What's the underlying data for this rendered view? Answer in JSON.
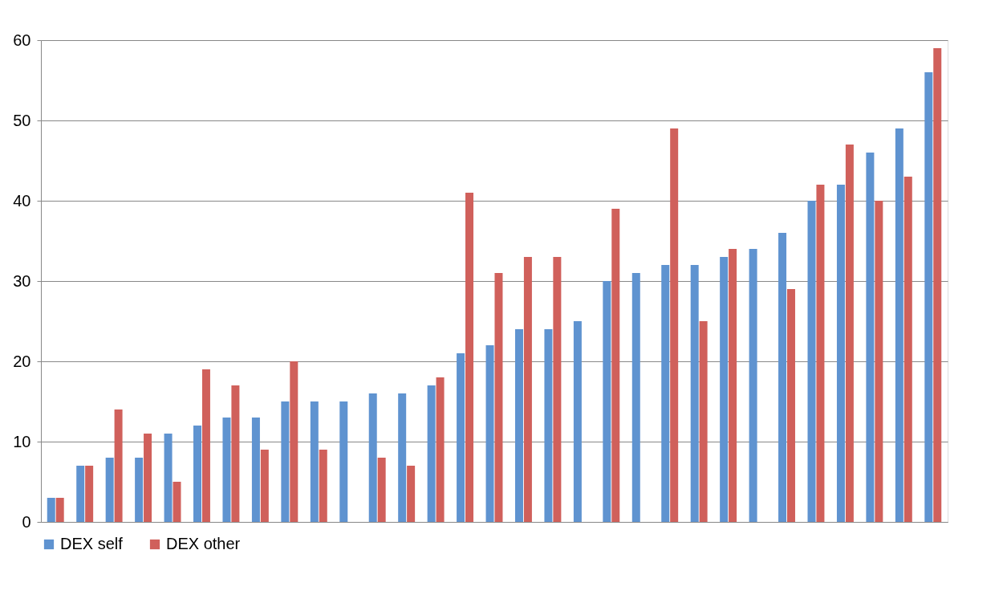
{
  "chart_data": {
    "type": "bar",
    "categories": [
      null,
      null,
      null,
      null,
      null,
      null,
      null,
      null,
      null,
      null,
      null,
      null,
      null,
      null,
      null,
      null,
      null,
      null,
      null,
      null,
      null,
      null,
      null,
      null,
      null,
      null,
      null,
      null,
      null,
      null,
      null
    ],
    "series": [
      {
        "name": "DEX self",
        "color": "#5f93d0",
        "values": [
          3,
          7,
          8,
          8,
          11,
          12,
          13,
          13,
          15,
          15,
          15,
          16,
          16,
          17,
          21,
          22,
          24,
          24,
          25,
          30,
          31,
          32,
          32,
          33,
          34,
          36,
          40,
          42,
          46,
          49,
          56
        ]
      },
      {
        "name": "DEX other",
        "color": "#d0605b",
        "values": [
          3,
          7,
          14,
          11,
          5,
          19,
          17,
          9,
          20,
          9,
          null,
          8,
          7,
          18,
          41,
          31,
          33,
          33,
          null,
          39,
          null,
          49,
          25,
          34,
          null,
          29,
          42,
          47,
          40,
          43,
          59
        ]
      }
    ],
    "ylim": [
      0,
      60
    ],
    "yticks": [
      0,
      10,
      20,
      30,
      40,
      50,
      60
    ],
    "grid": "y",
    "legend": "bottom",
    "tick_labels": "y"
  }
}
